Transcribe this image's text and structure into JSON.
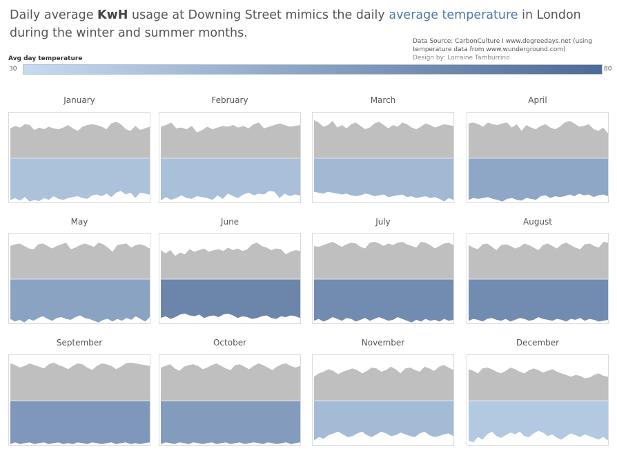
{
  "header": {
    "title_part1": "Daily average ",
    "title_bold": "KwH",
    "title_part2": " usage at Downing Street mimics the daily ",
    "title_highlight": "average temperature",
    "title_part3": " in London during the winter and summer months.",
    "source_line": "Data Source: CarbonCulture I www.degreedays.net (using temperature data from www.wunderground.com)",
    "designer_line": "Design by: Lorraine Tamburrino"
  },
  "legend": {
    "title": "Avg day temperature",
    "min_label": "30",
    "max_label": "80",
    "min_value": 30,
    "max_value": 80,
    "color_min": "#c6dbef",
    "color_max": "#4e6a96"
  },
  "colors": {
    "usage_fill": "#bfbfbf",
    "divider": "#e6e6e6",
    "highlight": "#4e79a7"
  },
  "chart_data": {
    "type": "area",
    "description_encoding": "upper grey area = daily avg KwH usage (relative units, 0-1); lower blue band = daily avg temperature, shade by legend",
    "months": [
      {
        "name": "January",
        "temperature": 41,
        "usage": [
          0.72,
          0.78,
          0.74,
          0.82,
          0.8,
          0.68,
          0.74,
          0.7,
          0.76,
          0.72,
          0.7,
          0.74,
          0.8,
          0.72,
          0.66,
          0.76,
          0.8,
          0.82,
          0.8,
          0.76,
          0.7,
          0.84,
          0.88,
          0.82,
          0.7,
          0.66,
          0.78,
          0.68,
          0.72,
          0.76
        ],
        "temp_band": [
          0.05,
          0.1,
          0.04,
          0.12,
          0.02,
          0.06,
          0.03,
          0.1,
          0.06,
          0.14,
          0.08,
          0.06,
          0.1,
          0.12,
          0.14,
          0.1,
          0.08,
          0.16,
          0.18,
          0.14,
          0.2,
          0.12,
          0.22,
          0.26,
          0.18,
          0.22,
          0.1,
          0.22,
          0.2,
          0.18
        ]
      },
      {
        "name": "February",
        "temperature": 42,
        "usage": [
          0.76,
          0.8,
          0.86,
          0.72,
          0.74,
          0.7,
          0.78,
          0.62,
          0.68,
          0.76,
          0.7,
          0.74,
          0.78,
          0.76,
          0.8,
          0.74,
          0.78,
          0.72,
          0.82,
          0.86,
          0.72,
          0.76,
          0.8,
          0.84,
          0.8,
          0.76,
          0.78,
          0.8
        ],
        "temp_band": [
          0.04,
          0.12,
          0.06,
          0.1,
          0.16,
          0.1,
          0.08,
          0.14,
          0.12,
          0.1,
          0.06,
          0.16,
          0.08,
          0.2,
          0.14,
          0.1,
          0.18,
          0.22,
          0.16,
          0.2,
          0.18,
          0.26,
          0.24,
          0.1,
          0.2,
          0.14,
          0.18,
          0.16
        ]
      },
      {
        "name": "March",
        "temperature": 45,
        "usage": [
          0.92,
          0.86,
          0.76,
          0.8,
          0.9,
          0.74,
          0.8,
          0.72,
          0.82,
          0.86,
          0.78,
          0.7,
          0.74,
          0.84,
          0.88,
          0.8,
          0.72,
          0.8,
          0.76,
          0.86,
          0.82,
          0.74,
          0.7,
          0.76,
          0.84,
          0.8,
          0.74,
          0.78,
          0.82,
          0.8,
          0.78
        ],
        "temp_band": [
          0.24,
          0.22,
          0.2,
          0.24,
          0.22,
          0.2,
          0.18,
          0.2,
          0.16,
          0.14,
          0.16,
          0.2,
          0.18,
          0.14,
          0.16,
          0.18,
          0.12,
          0.14,
          0.16,
          0.18,
          0.12,
          0.14,
          0.1,
          0.12,
          0.14,
          0.1,
          0.12,
          0.08,
          0.02,
          0.1,
          0.06
        ]
      },
      {
        "name": "April",
        "temperature": 53,
        "usage": [
          0.84,
          0.86,
          0.82,
          0.76,
          0.86,
          0.82,
          0.8,
          0.84,
          0.86,
          0.74,
          0.82,
          0.66,
          0.8,
          0.74,
          0.7,
          0.78,
          0.82,
          0.74,
          0.7,
          0.76,
          0.86,
          0.9,
          0.84,
          0.76,
          0.78,
          0.82,
          0.7,
          0.66,
          0.74,
          0.6
        ],
        "temp_band": [
          0.06,
          0.1,
          0.08,
          0.1,
          0.12,
          0.08,
          0.06,
          0.02,
          0.08,
          0.1,
          0.06,
          0.04,
          0.1,
          0.08,
          0.06,
          0.14,
          0.16,
          0.1,
          0.14,
          0.12,
          0.14,
          0.18,
          0.14,
          0.2,
          0.16,
          0.18,
          0.12,
          0.16,
          0.18,
          0.14
        ]
      },
      {
        "name": "May",
        "temperature": 55,
        "usage": [
          0.8,
          0.84,
          0.86,
          0.8,
          0.74,
          0.72,
          0.84,
          0.86,
          0.8,
          0.74,
          0.8,
          0.84,
          0.88,
          0.72,
          0.76,
          0.82,
          0.86,
          0.82,
          0.78,
          0.88,
          0.84,
          0.76,
          0.66,
          0.82,
          0.84,
          0.86,
          0.76,
          0.82,
          0.84,
          0.8,
          0.74
        ],
        "temp_band": [
          0.1,
          0.04,
          0.08,
          0.02,
          0.1,
          0.06,
          0.12,
          0.16,
          0.1,
          0.06,
          0.12,
          0.14,
          0.1,
          0.08,
          0.14,
          0.18,
          0.12,
          0.1,
          0.06,
          0.02,
          0.08,
          0.1,
          0.04,
          0.1,
          0.06,
          0.12,
          0.08,
          0.16,
          0.1,
          0.04,
          0.14
        ]
      },
      {
        "name": "June",
        "temperature": 68,
        "usage": [
          0.7,
          0.62,
          0.7,
          0.56,
          0.64,
          0.6,
          0.72,
          0.66,
          0.7,
          0.74,
          0.66,
          0.7,
          0.72,
          0.68,
          0.76,
          0.7,
          0.74,
          0.68,
          0.72,
          0.84,
          0.88,
          0.8,
          0.76,
          0.7,
          0.74,
          0.72,
          0.6,
          0.66,
          0.7,
          0.68
        ],
        "temp_band": [
          0.12,
          0.16,
          0.1,
          0.14,
          0.2,
          0.22,
          0.18,
          0.16,
          0.2,
          0.12,
          0.16,
          0.18,
          0.14,
          0.2,
          0.22,
          0.18,
          0.12,
          0.16,
          0.14,
          0.1,
          0.12,
          0.16,
          0.18,
          0.12,
          0.1,
          0.16,
          0.14,
          0.18,
          0.16,
          0.12
        ]
      },
      {
        "name": "July",
        "temperature": 65,
        "usage": [
          0.8,
          0.78,
          0.82,
          0.86,
          0.9,
          0.84,
          0.78,
          0.84,
          0.88,
          0.86,
          0.78,
          0.74,
          0.88,
          0.9,
          0.86,
          0.8,
          0.86,
          0.82,
          0.88,
          0.9,
          0.84,
          0.8,
          0.76,
          0.9,
          0.88,
          0.82,
          0.74,
          0.8,
          0.86,
          0.88,
          0.82
        ],
        "temp_band": [
          0.06,
          0.1,
          0.04,
          0.08,
          0.14,
          0.1,
          0.06,
          0.12,
          0.1,
          0.04,
          0.08,
          0.12,
          0.06,
          0.1,
          0.14,
          0.1,
          0.06,
          0.08,
          0.14,
          0.1,
          0.06,
          0.02,
          0.08,
          0.04,
          0.1,
          0.06,
          0.08,
          0.04,
          0.1,
          0.06,
          0.08
        ]
      },
      {
        "name": "August",
        "temperature": 65,
        "usage": [
          0.82,
          0.76,
          0.72,
          0.84,
          0.86,
          0.78,
          0.7,
          0.82,
          0.84,
          0.8,
          0.74,
          0.78,
          0.86,
          0.82,
          0.76,
          0.7,
          0.82,
          0.86,
          0.8,
          0.74,
          0.84,
          0.88,
          0.82,
          0.76,
          0.72,
          0.84,
          0.86,
          0.8,
          0.76,
          0.9,
          0.88
        ],
        "temp_band": [
          0.06,
          0.1,
          0.08,
          0.04,
          0.1,
          0.12,
          0.08,
          0.06,
          0.1,
          0.04,
          0.08,
          0.12,
          0.1,
          0.06,
          0.08,
          0.14,
          0.1,
          0.08,
          0.06,
          0.1,
          0.08,
          0.04,
          0.1,
          0.08,
          0.12,
          0.06,
          0.1,
          0.08,
          0.04,
          0.06,
          0.08
        ]
      },
      {
        "name": "September",
        "temperature": 60,
        "usage": [
          0.9,
          0.86,
          0.8,
          0.84,
          0.9,
          0.86,
          0.82,
          0.78,
          0.88,
          0.92,
          0.86,
          0.82,
          0.76,
          0.84,
          0.9,
          0.88,
          0.8,
          0.74,
          0.84,
          0.9,
          0.88,
          0.84,
          0.76,
          0.82,
          0.9,
          0.92,
          0.9,
          0.88,
          0.86,
          0.84
        ],
        "temp_band": [
          0.02,
          0.06,
          0.02,
          0.04,
          0.06,
          0.02,
          0.04,
          0.06,
          0.02,
          0.04,
          0.06,
          0.02,
          0.04,
          0.02,
          0.06,
          0.04,
          0.02,
          0.06,
          0.04,
          0.02,
          0.04,
          0.06,
          0.02,
          0.04,
          0.06,
          0.02,
          0.04,
          0.02,
          0.04,
          0.06
        ]
      },
      {
        "name": "October",
        "temperature": 58,
        "usage": [
          0.8,
          0.84,
          0.88,
          0.78,
          0.72,
          0.82,
          0.86,
          0.88,
          0.84,
          0.76,
          0.8,
          0.86,
          0.9,
          0.84,
          0.78,
          0.74,
          0.86,
          0.88,
          0.82,
          0.76,
          0.84,
          0.9,
          0.86,
          0.8,
          0.74,
          0.82,
          0.88,
          0.9,
          0.84,
          0.8,
          0.84
        ],
        "temp_band": [
          0.02,
          0.06,
          0.04,
          0.02,
          0.06,
          0.04,
          0.02,
          0.06,
          0.04,
          0.02,
          0.04,
          0.06,
          0.02,
          0.04,
          0.06,
          0.02,
          0.04,
          0.06,
          0.02,
          0.04,
          0.06,
          0.04,
          0.02,
          0.06,
          0.04,
          0.02,
          0.04,
          0.06,
          0.02,
          0.04,
          0.06
        ]
      },
      {
        "name": "November",
        "temperature": 44,
        "usage": [
          0.58,
          0.66,
          0.7,
          0.76,
          0.72,
          0.64,
          0.7,
          0.74,
          0.78,
          0.74,
          0.66,
          0.72,
          0.8,
          0.78,
          0.7,
          0.74,
          0.82,
          0.76,
          0.66,
          0.78,
          0.8,
          0.74,
          0.7,
          0.82,
          0.78,
          0.72,
          0.82,
          0.86,
          0.8,
          0.74
        ],
        "temp_band": [
          0.1,
          0.18,
          0.14,
          0.22,
          0.26,
          0.3,
          0.24,
          0.18,
          0.2,
          0.26,
          0.3,
          0.22,
          0.18,
          0.24,
          0.3,
          0.26,
          0.2,
          0.22,
          0.28,
          0.24,
          0.2,
          0.18,
          0.26,
          0.3,
          0.22,
          0.18,
          0.2,
          0.24,
          0.26,
          0.2
        ]
      },
      {
        "name": "December",
        "temperature": 38,
        "usage": [
          0.76,
          0.72,
          0.66,
          0.78,
          0.8,
          0.76,
          0.7,
          0.66,
          0.72,
          0.8,
          0.76,
          0.7,
          0.66,
          0.74,
          0.78,
          0.74,
          0.68,
          0.72,
          0.76,
          0.7,
          0.66,
          0.62,
          0.58,
          0.62,
          0.6,
          0.54,
          0.56,
          0.62,
          0.66,
          0.6,
          0.58
        ],
        "temp_band": [
          0.1,
          0.06,
          0.18,
          0.12,
          0.24,
          0.3,
          0.2,
          0.16,
          0.22,
          0.28,
          0.24,
          0.3,
          0.2,
          0.18,
          0.26,
          0.32,
          0.28,
          0.2,
          0.24,
          0.16,
          0.12,
          0.2,
          0.26,
          0.22,
          0.18,
          0.24,
          0.2,
          0.16,
          0.12,
          0.18,
          0.1
        ]
      }
    ]
  }
}
